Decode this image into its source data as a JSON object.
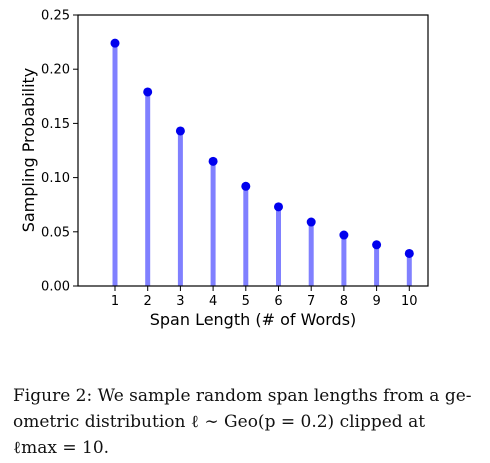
{
  "chart_data": {
    "type": "bar",
    "categories": [
      "1",
      "2",
      "3",
      "4",
      "5",
      "6",
      "7",
      "8",
      "9",
      "10"
    ],
    "values": [
      0.224,
      0.179,
      0.143,
      0.115,
      0.092,
      0.073,
      0.059,
      0.047,
      0.038,
      0.03
    ],
    "ylim": [
      0.0,
      0.25
    ],
    "yticks": [
      "0.00",
      "0.05",
      "0.10",
      "0.15",
      "0.20",
      "0.25"
    ],
    "ytick_values": [
      0.0,
      0.05,
      0.1,
      0.15,
      0.2,
      0.25
    ],
    "xlabel": "Span Length (# of Words)",
    "ylabel": "Sampling Probability",
    "grid": false,
    "colors": {
      "stem": "#8080ff",
      "marker": "#0000ee",
      "axis": "#000000"
    }
  },
  "caption": {
    "line1": "Figure 2: We sample random span lengths from a ge-",
    "line2": "ometric distribution ℓ ∼ Geo(p = 0.2) clipped at",
    "line3": "ℓmax = 10."
  }
}
